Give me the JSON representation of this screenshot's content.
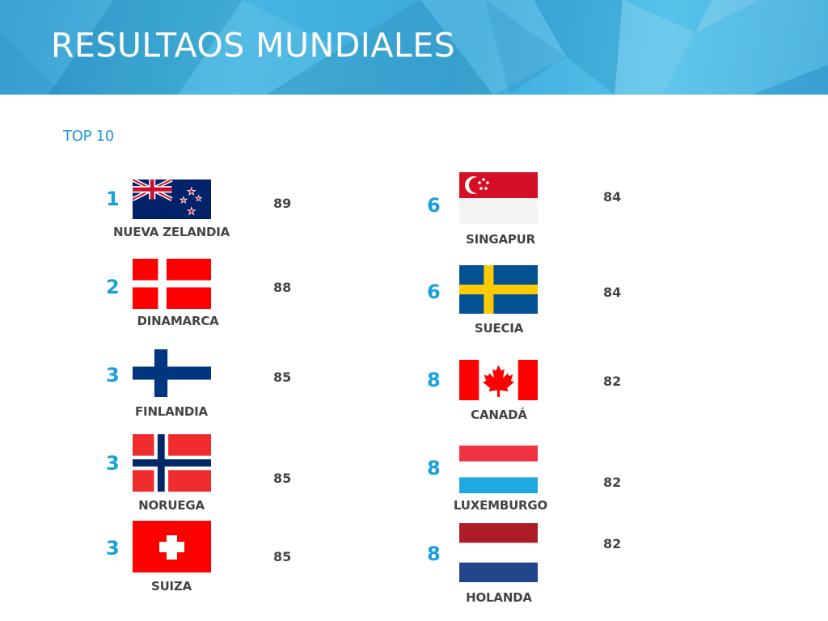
{
  "title": "RESULTAOS MUNDIALES",
  "subtitle": "TOP 10",
  "colors": {
    "header": "#3aa9db",
    "accent": "#1aa0dc",
    "text": "#444444"
  },
  "entries": [
    {
      "rank": "1",
      "country": "NUEVA ZELANDIA",
      "score": "89",
      "flag": "new-zealand-flag"
    },
    {
      "rank": "2",
      "country": "DINAMARCA",
      "score": "88",
      "flag": "denmark-flag"
    },
    {
      "rank": "3",
      "country": "FINLANDIA",
      "score": "85",
      "flag": "finland-flag"
    },
    {
      "rank": "3",
      "country": "NORUEGA",
      "score": "85",
      "flag": "norway-flag"
    },
    {
      "rank": "3",
      "country": "SUIZA",
      "score": "85",
      "flag": "switzerland-flag"
    },
    {
      "rank": "6",
      "country": "SINGAPUR",
      "score": "84",
      "flag": "singapore-flag"
    },
    {
      "rank": "6",
      "country": "SUECIA",
      "score": "84",
      "flag": "sweden-flag"
    },
    {
      "rank": "8",
      "country": "CANADÁ",
      "score": "82",
      "flag": "canada-flag"
    },
    {
      "rank": "8",
      "country": "LUXEMBURGO",
      "score": "82",
      "flag": "luxembourg-flag"
    },
    {
      "rank": "8",
      "country": "HOLANDA",
      "score": "82",
      "flag": "netherlands-flag"
    }
  ]
}
